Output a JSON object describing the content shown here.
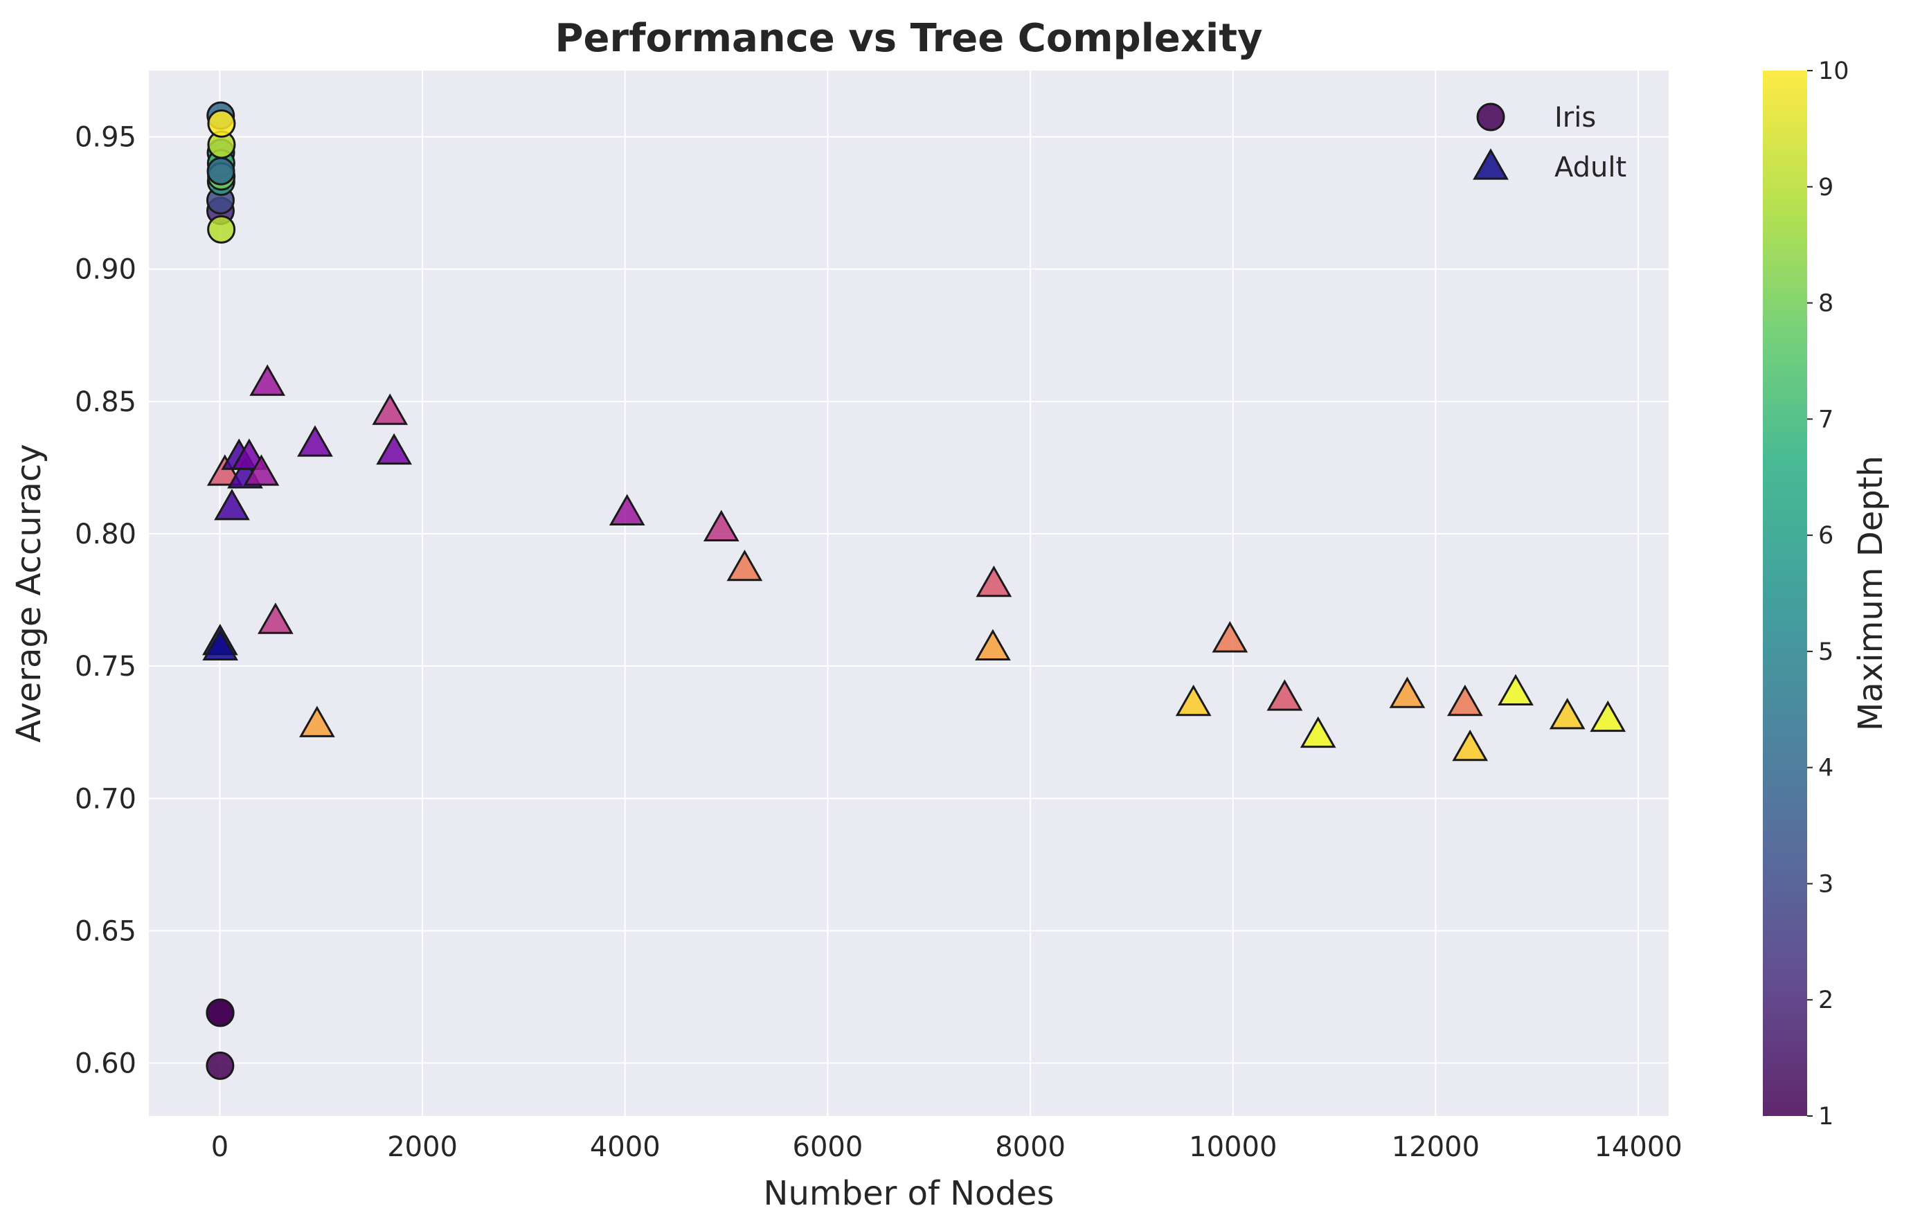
{
  "chart_data": {
    "type": "scatter",
    "title": "Performance vs Tree Complexity",
    "xlabel": "Number of Nodes",
    "ylabel": "Average Accuracy",
    "xlim": [
      -700,
      14300
    ],
    "ylim": [
      0.58,
      0.975
    ],
    "xticks": [
      0,
      2000,
      4000,
      6000,
      8000,
      10000,
      12000,
      14000
    ],
    "xtick_labels": [
      "0",
      "2000",
      "4000",
      "6000",
      "8000",
      "10000",
      "12000",
      "14000"
    ],
    "yticks": [
      0.6,
      0.65,
      0.7,
      0.75,
      0.8,
      0.85,
      0.9,
      0.95
    ],
    "ytick_labels": [
      "0.60",
      "0.65",
      "0.70",
      "0.75",
      "0.80",
      "0.85",
      "0.90",
      "0.95"
    ],
    "grid": true,
    "legend_position": "top-right",
    "colorbar": {
      "label": "Maximum Depth",
      "range": [
        1,
        10
      ],
      "ticks": [
        1,
        2,
        3,
        4,
        5,
        6,
        7,
        8,
        9,
        10
      ],
      "tick_labels": [
        "1",
        "2",
        "3",
        "4",
        "5",
        "6",
        "7",
        "8",
        "9",
        "10"
      ],
      "colormap": "viridis"
    },
    "colors": {
      "plot_background": "#eaeaf2",
      "grid": "#ffffff",
      "marker_edge": "#1a1a1a",
      "legend_iris_sample": "#440154",
      "legend_adult_sample": "#0d0887"
    },
    "series": [
      {
        "name": "Iris",
        "marker": "circle",
        "colormap": "viridis",
        "points": [
          {
            "x": 3,
            "y": 0.599,
            "depth": 1
          },
          {
            "x": 5,
            "y": 0.619,
            "depth": 1
          },
          {
            "x": 3,
            "y": 0.619,
            "depth": 1
          },
          {
            "x": 7,
            "y": 0.922,
            "depth": 2
          },
          {
            "x": 7,
            "y": 0.926,
            "depth": 3
          },
          {
            "x": 9,
            "y": 0.958,
            "depth": 4
          },
          {
            "x": 11,
            "y": 0.944,
            "depth": 5
          },
          {
            "x": 13,
            "y": 0.933,
            "depth": 6
          },
          {
            "x": 13,
            "y": 0.94,
            "depth": 7
          },
          {
            "x": 15,
            "y": 0.935,
            "depth": 8
          },
          {
            "x": 15,
            "y": 0.915,
            "depth": 9
          },
          {
            "x": 17,
            "y": 0.947,
            "depth": 9
          },
          {
            "x": 17,
            "y": 0.955,
            "depth": 10
          },
          {
            "x": 11,
            "y": 0.937,
            "depth": 4
          }
        ]
      },
      {
        "name": "Adult",
        "marker": "triangle",
        "colormap": "plasma",
        "points": [
          {
            "x": 3,
            "y": 0.759,
            "depth": 1
          },
          {
            "x": 5,
            "y": 0.757,
            "depth": 1
          },
          {
            "x": 50,
            "y": 0.823,
            "depth": 6
          },
          {
            "x": 120,
            "y": 0.81,
            "depth": 2
          },
          {
            "x": 190,
            "y": 0.829,
            "depth": 2
          },
          {
            "x": 250,
            "y": 0.822,
            "depth": 2
          },
          {
            "x": 290,
            "y": 0.829,
            "depth": 3
          },
          {
            "x": 410,
            "y": 0.823,
            "depth": 4
          },
          {
            "x": 470,
            "y": 0.857,
            "depth": 4
          },
          {
            "x": 550,
            "y": 0.767,
            "depth": 5
          },
          {
            "x": 940,
            "y": 0.834,
            "depth": 3
          },
          {
            "x": 960,
            "y": 0.728,
            "depth": 8
          },
          {
            "x": 1680,
            "y": 0.846,
            "depth": 5
          },
          {
            "x": 1720,
            "y": 0.831,
            "depth": 3
          },
          {
            "x": 4020,
            "y": 0.808,
            "depth": 4
          },
          {
            "x": 4950,
            "y": 0.802,
            "depth": 5
          },
          {
            "x": 5180,
            "y": 0.787,
            "depth": 7
          },
          {
            "x": 7640,
            "y": 0.781,
            "depth": 6
          },
          {
            "x": 7630,
            "y": 0.757,
            "depth": 8
          },
          {
            "x": 9610,
            "y": 0.736,
            "depth": 9
          },
          {
            "x": 9970,
            "y": 0.76,
            "depth": 7
          },
          {
            "x": 10510,
            "y": 0.738,
            "depth": 6
          },
          {
            "x": 10840,
            "y": 0.724,
            "depth": 10
          },
          {
            "x": 11720,
            "y": 0.739,
            "depth": 8
          },
          {
            "x": 12290,
            "y": 0.736,
            "depth": 7
          },
          {
            "x": 12340,
            "y": 0.719,
            "depth": 9
          },
          {
            "x": 12790,
            "y": 0.74,
            "depth": 10
          },
          {
            "x": 13300,
            "y": 0.731,
            "depth": 9
          },
          {
            "x": 13700,
            "y": 0.73,
            "depth": 10
          }
        ]
      }
    ]
  }
}
